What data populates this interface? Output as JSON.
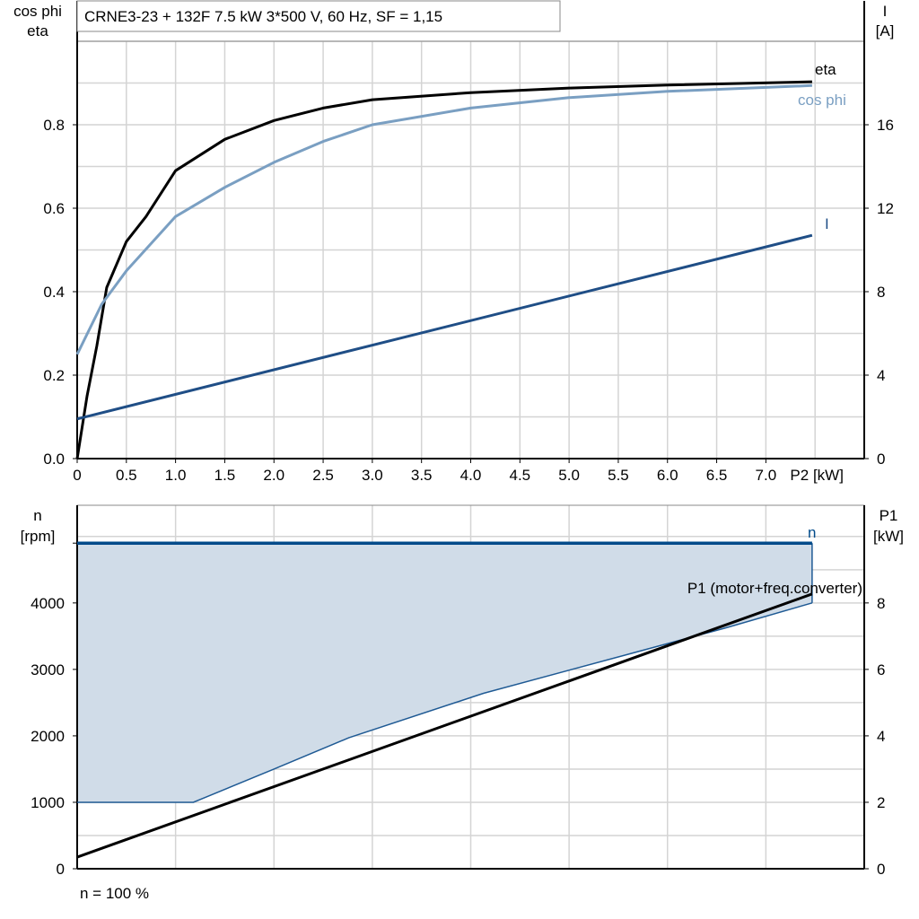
{
  "chart_data": [
    {
      "type": "line",
      "title": "CRNE3-23 + 132F   7.5 kW   3*500 V, 60 Hz, SF = 1,15",
      "xlabel": "P2 [kW]",
      "ylabel_left": [
        "cos phi",
        "eta"
      ],
      "ylabel_right": [
        "I",
        "[A]"
      ],
      "xlim": [
        0,
        8
      ],
      "ylim_left": [
        0,
        1
      ],
      "ylim_right": [
        0,
        20
      ],
      "x_ticks": [
        "0",
        "0.5",
        "1.0",
        "1.5",
        "2.0",
        "2.5",
        "3.0",
        "3.5",
        "4.0",
        "4.5",
        "5.0",
        "5.5",
        "6.0",
        "6.5",
        "7.0"
      ],
      "y_ticks_left": [
        "0.0",
        "0.2",
        "0.4",
        "0.6",
        "0.8"
      ],
      "y_ticks_right": [
        "0",
        "4",
        "8",
        "12",
        "16"
      ],
      "grid": true,
      "series": [
        {
          "name": "eta",
          "axis": "left",
          "color": "#000000",
          "x": [
            0,
            0.1,
            0.2,
            0.3,
            0.5,
            0.7,
            1.0,
            1.5,
            2.0,
            2.5,
            3.0,
            4.0,
            5.0,
            6.0,
            7.47
          ],
          "y": [
            0,
            0.15,
            0.27,
            0.41,
            0.52,
            0.58,
            0.69,
            0.765,
            0.81,
            0.84,
            0.86,
            0.877,
            0.888,
            0.895,
            0.903
          ]
        },
        {
          "name": "cos phi",
          "axis": "left",
          "color": "#7a9fc2",
          "x": [
            0,
            0.25,
            0.5,
            1.0,
            1.5,
            2.0,
            2.5,
            3.0,
            4.0,
            5.0,
            6.0,
            7.47
          ],
          "y": [
            0.25,
            0.37,
            0.45,
            0.58,
            0.65,
            0.71,
            0.76,
            0.8,
            0.84,
            0.865,
            0.88,
            0.894
          ]
        },
        {
          "name": "I",
          "axis": "right",
          "color": "#1f4e86",
          "x": [
            0,
            7.47
          ],
          "y": [
            1.9,
            10.7
          ]
        }
      ]
    },
    {
      "type": "line",
      "xlabel": "",
      "ylabel_left": [
        "n",
        "[rpm]"
      ],
      "ylabel_right": [
        "P1",
        "[kW]"
      ],
      "xlim": [
        0,
        8
      ],
      "ylim_left": [
        0,
        5470
      ],
      "ylim_right": [
        0,
        10.94
      ],
      "y_ticks_left": [
        "0",
        "1000",
        "2000",
        "3000",
        "4000"
      ],
      "y_ticks_right": [
        "0",
        "2",
        "4",
        "6",
        "8"
      ],
      "grid": true,
      "note": "n = 100 %",
      "fill_color": "#d0dce8",
      "series": [
        {
          "name": "n",
          "axis": "left",
          "color": "#004a8a",
          "x": [
            0,
            7.47
          ],
          "y": [
            4900,
            4900
          ]
        },
        {
          "name": "",
          "axis": "left",
          "color": "#1f5a94",
          "x": [
            0,
            1.18,
            2.0,
            2.76,
            4.13,
            5.58,
            6.58,
            7.47
          ],
          "y": [
            1000,
            1000,
            1500,
            1970,
            2640,
            3220,
            3620,
            4000
          ]
        },
        {
          "name": "P1 (motor+freq.converter)",
          "axis": "right",
          "color": "#000000",
          "x": [
            0,
            7.47
          ],
          "y": [
            0.35,
            8.27
          ]
        }
      ]
    }
  ]
}
